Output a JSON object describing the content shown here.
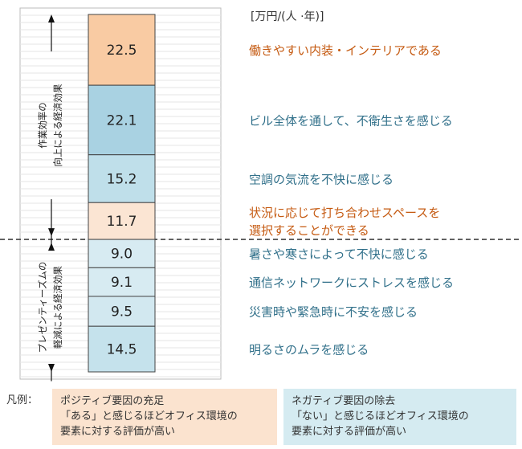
{
  "chart_data": {
    "type": "bar",
    "unit": "[万円/(人 ·年)]",
    "groups": [
      {
        "label_lines": [
          "作業効率の",
          "向上による経済効果"
        ]
      },
      {
        "label_lines": [
          "プレゼンティーズムの",
          "軽減による経済効果"
        ]
      }
    ],
    "segments": [
      {
        "value": 22.5,
        "label_lines": [
          "働きやすい内装・インテリアである"
        ],
        "group": 0,
        "kind": "positive"
      },
      {
        "value": 22.1,
        "label_lines": [
          "ビル全体を通して、不衛生さを感じる"
        ],
        "group": 0,
        "kind": "negative"
      },
      {
        "value": 15.2,
        "label_lines": [
          "空調の気流を不快に感じる"
        ],
        "group": 0,
        "kind": "negative"
      },
      {
        "value": 11.7,
        "label_lines": [
          "状況に応じて打ち合わせスペースを",
          "選択することができる"
        ],
        "group": 0,
        "kind": "positive"
      },
      {
        "value": 9.0,
        "label_lines": [
          "暑さや寒さによって不快に感じる"
        ],
        "group": 1,
        "kind": "negative"
      },
      {
        "value": 9.1,
        "label_lines": [
          "通信ネットワークにストレスを感じる"
        ],
        "group": 1,
        "kind": "negative"
      },
      {
        "value": 9.5,
        "label_lines": [
          "災害時や緊急時に不安を感じる"
        ],
        "group": 1,
        "kind": "negative"
      },
      {
        "value": 14.5,
        "label_lines": [
          "明るさのムラを感じる"
        ],
        "group": 1,
        "kind": "negative"
      }
    ],
    "colors": {
      "positive_strong": "#f9cba3",
      "positive_light": "#fbe5d3",
      "negative": [
        "#a9d2e2",
        "#bfdfea",
        "#d7ebf2",
        "#d7ebf2",
        "#d2e8f0",
        "#c5e2ec",
        "#6fb5cf"
      ],
      "positive_text": "#c55a11",
      "negative_text": "#31708a"
    }
  },
  "legend": {
    "title": "凡例：",
    "positive": [
      "ポジティブ要因の充足",
      "「ある」と感じるほどオフィス環境の",
      "要素に対する評価が高い"
    ],
    "negative": [
      "ネガティブ要因の除去",
      "「ない」と感じるほどオフィス環境の",
      "要素に対する評価が高い"
    ]
  }
}
